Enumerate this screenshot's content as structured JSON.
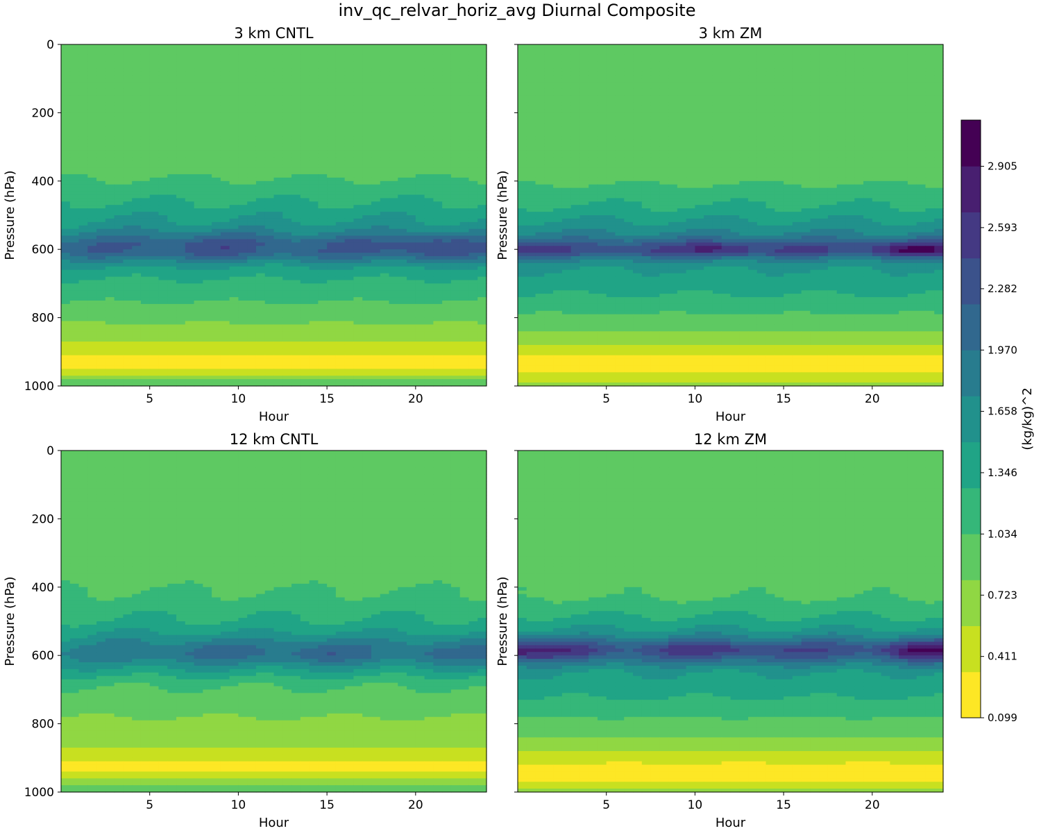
{
  "figure": {
    "title": "inv_qc_relvar_horiz_avg Diurnal Composite"
  },
  "colors": {
    "levels": [
      "#fde725",
      "#c8e020",
      "#90d743",
      "#5ec962",
      "#35b779",
      "#20a486",
      "#21918c",
      "#287c8e",
      "#31688e",
      "#3b528b",
      "#443983",
      "#481f70",
      "#440154"
    ],
    "background": "#4ac16d"
  },
  "colorbar": {
    "label": "(kg/kg)^2",
    "min": 0.099,
    "max": 3.14,
    "ticks": [
      0.099,
      0.411,
      0.723,
      1.034,
      1.346,
      1.658,
      1.97,
      2.282,
      2.593,
      2.905
    ],
    "tick_labels": [
      "0.099",
      "0.411",
      "0.723",
      "1.034",
      "1.346",
      "1.658",
      "1.970",
      "2.282",
      "2.593",
      "2.905"
    ]
  },
  "chart_data": [
    {
      "type": "heatmap",
      "title": "3 km CNTL",
      "xlabel": "Hour",
      "ylabel": "Pressure (hPa)",
      "xlim": [
        0,
        24
      ],
      "ylim": [
        1000,
        0
      ],
      "xticks": [
        5,
        10,
        15,
        20
      ],
      "yticks": [
        0,
        200,
        400,
        600,
        800,
        1000
      ],
      "show_ytick_labels": true,
      "profile": [
        [
          0,
          1.0
        ],
        [
          380,
          1.0
        ],
        [
          430,
          1.15
        ],
        [
          480,
          1.35
        ],
        [
          540,
          1.6
        ],
        [
          580,
          1.9
        ],
        [
          610,
          1.9
        ],
        [
          650,
          1.45
        ],
        [
          700,
          1.2
        ],
        [
          750,
          1.05
        ],
        [
          800,
          0.85
        ],
        [
          850,
          0.7
        ],
        [
          880,
          0.5
        ],
        [
          905,
          0.35
        ],
        [
          930,
          0.2
        ],
        [
          950,
          0.35
        ],
        [
          970,
          0.6
        ],
        [
          985,
          0.9
        ],
        [
          1000,
          1.0
        ]
      ],
      "band": {
        "center": 595,
        "width": 45,
        "amp": [
          [
            0,
            0.15
          ],
          [
            4,
            0.3
          ],
          [
            6,
            0.35
          ],
          [
            9,
            0.45
          ],
          [
            12,
            0.25
          ],
          [
            15,
            0.3
          ],
          [
            18,
            0.3
          ],
          [
            21,
            0.55
          ],
          [
            24,
            0.2
          ]
        ]
      },
      "wave": 0.12
    },
    {
      "type": "heatmap",
      "title": "3 km ZM",
      "xlabel": "Hour",
      "ylabel": "Pressure (hPa)",
      "xlim": [
        0,
        24
      ],
      "ylim": [
        1000,
        0
      ],
      "xticks": [
        5,
        10,
        15,
        20
      ],
      "yticks": [
        0,
        200,
        400,
        600,
        800,
        1000
      ],
      "show_ytick_labels": false,
      "profile": [
        [
          0,
          1.0
        ],
        [
          400,
          1.0
        ],
        [
          440,
          1.15
        ],
        [
          490,
          1.35
        ],
        [
          540,
          1.65
        ],
        [
          580,
          2.0
        ],
        [
          610,
          2.0
        ],
        [
          650,
          1.55
        ],
        [
          700,
          1.35
        ],
        [
          760,
          1.2
        ],
        [
          800,
          0.95
        ],
        [
          850,
          0.75
        ],
        [
          880,
          0.55
        ],
        [
          910,
          0.35
        ],
        [
          940,
          0.15
        ],
        [
          960,
          0.3
        ],
        [
          980,
          0.5
        ],
        [
          1000,
          0.7
        ]
      ],
      "band": {
        "center": 600,
        "width": 22,
        "amp": [
          [
            0,
            0.75
          ],
          [
            2,
            0.4
          ],
          [
            5,
            0.35
          ],
          [
            9,
            0.5
          ],
          [
            11,
            0.75
          ],
          [
            14,
            0.45
          ],
          [
            18,
            0.4
          ],
          [
            20,
            0.5
          ],
          [
            22,
            1.0
          ],
          [
            24,
            0.8
          ]
        ]
      },
      "wave": 0.1
    },
    {
      "type": "heatmap",
      "title": "12 km CNTL",
      "xlabel": "Hour",
      "ylabel": "Pressure (hPa)",
      "xlim": [
        0,
        24
      ],
      "ylim": [
        1000,
        0
      ],
      "xticks": [
        5,
        10,
        15,
        20
      ],
      "yticks": [
        0,
        200,
        400,
        600,
        800,
        1000
      ],
      "show_ytick_labels": true,
      "profile": [
        [
          0,
          1.0
        ],
        [
          390,
          1.0
        ],
        [
          440,
          1.1
        ],
        [
          500,
          1.3
        ],
        [
          550,
          1.55
        ],
        [
          600,
          1.7
        ],
        [
          640,
          1.45
        ],
        [
          680,
          1.1
        ],
        [
          720,
          0.95
        ],
        [
          780,
          0.8
        ],
        [
          840,
          0.72
        ],
        [
          880,
          0.5
        ],
        [
          910,
          0.35
        ],
        [
          930,
          0.25
        ],
        [
          960,
          0.55
        ],
        [
          985,
          0.85
        ],
        [
          1000,
          1.0
        ]
      ],
      "band": {
        "center": 590,
        "width": 40,
        "amp": [
          [
            0,
            0.1
          ],
          [
            4,
            0.2
          ],
          [
            8,
            0.4
          ],
          [
            11,
            0.3
          ],
          [
            15,
            0.5
          ],
          [
            18,
            0.2
          ],
          [
            21,
            0.4
          ],
          [
            24,
            0.3
          ]
        ]
      },
      "wave": 0.12
    },
    {
      "type": "heatmap",
      "title": "12 km ZM",
      "xlabel": "Hour",
      "ylabel": "Pressure (hPa)",
      "xlim": [
        0,
        24
      ],
      "ylim": [
        1000,
        0
      ],
      "xticks": [
        5,
        10,
        15,
        20
      ],
      "yticks": [
        0,
        200,
        400,
        600,
        800,
        1000
      ],
      "show_ytick_labels": false,
      "profile": [
        [
          0,
          1.0
        ],
        [
          420,
          1.0
        ],
        [
          460,
          1.15
        ],
        [
          510,
          1.4
        ],
        [
          550,
          1.75
        ],
        [
          580,
          2.05
        ],
        [
          610,
          1.9
        ],
        [
          650,
          1.5
        ],
        [
          700,
          1.35
        ],
        [
          760,
          1.15
        ],
        [
          800,
          0.95
        ],
        [
          850,
          0.75
        ],
        [
          890,
          0.5
        ],
        [
          920,
          0.3
        ],
        [
          950,
          0.15
        ],
        [
          975,
          0.35
        ],
        [
          995,
          0.65
        ],
        [
          1000,
          0.85
        ]
      ],
      "band": {
        "center": 585,
        "width": 30,
        "amp": [
          [
            0,
            0.85
          ],
          [
            3,
            0.55
          ],
          [
            6,
            0.25
          ],
          [
            10,
            0.55
          ],
          [
            12,
            0.5
          ],
          [
            15,
            0.4
          ],
          [
            18,
            0.35
          ],
          [
            20,
            0.3
          ],
          [
            22,
            0.85
          ],
          [
            24,
            0.9
          ]
        ]
      },
      "wave": 0.1
    }
  ]
}
